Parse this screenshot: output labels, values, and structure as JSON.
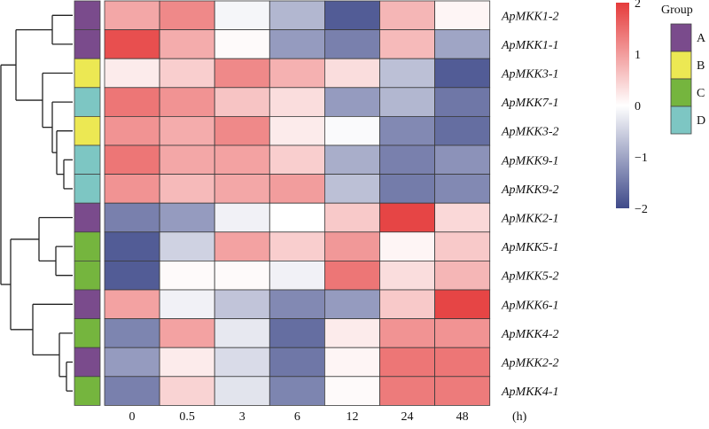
{
  "chart_data": {
    "type": "heatmap",
    "title": "",
    "xlabel": "(h)",
    "ylabel": "",
    "columns": [
      "0",
      "0.5",
      "3",
      "6",
      "12",
      "24",
      "48"
    ],
    "unit_label": "(h)",
    "rows": [
      {
        "gene": "ApMKK1-2",
        "group": "A",
        "values": [
          0.9,
          1.2,
          -0.1,
          -0.8,
          -1.8,
          0.75,
          0.1
        ]
      },
      {
        "gene": "ApMKK1-1",
        "group": "A",
        "values": [
          1.8,
          0.85,
          0.05,
          -1.1,
          -1.4,
          0.7,
          -1.0
        ]
      },
      {
        "gene": "ApMKK3-1",
        "group": "B",
        "values": [
          0.2,
          0.5,
          1.2,
          0.8,
          0.35,
          -0.7,
          -1.8
        ]
      },
      {
        "gene": "ApMKK7-1",
        "group": "D",
        "values": [
          1.4,
          1.1,
          0.6,
          0.35,
          -1.1,
          -0.8,
          -1.5
        ]
      },
      {
        "gene": "ApMKK3-2",
        "group": "B",
        "values": [
          1.1,
          0.85,
          1.2,
          0.2,
          -0.05,
          -1.3,
          -1.6
        ]
      },
      {
        "gene": "ApMKK9-1",
        "group": "D",
        "values": [
          1.4,
          0.9,
          0.95,
          0.5,
          -0.9,
          -1.4,
          -1.2
        ]
      },
      {
        "gene": "ApMKK9-2",
        "group": "D",
        "values": [
          1.1,
          0.7,
          0.9,
          1.0,
          -0.7,
          -1.45,
          -1.3
        ]
      },
      {
        "gene": "ApMKK2-1",
        "group": "A",
        "values": [
          -1.4,
          -1.1,
          -0.15,
          0.0,
          0.55,
          1.9,
          0.4
        ]
      },
      {
        "gene": "ApMKK5-1",
        "group": "C",
        "values": [
          -1.8,
          -0.5,
          0.95,
          0.5,
          1.05,
          0.1,
          0.55
        ]
      },
      {
        "gene": "ApMKK5-2",
        "group": "C",
        "values": [
          -1.8,
          0.05,
          0.05,
          -0.15,
          1.4,
          0.35,
          0.75
        ]
      },
      {
        "gene": "ApMKK6-1",
        "group": "A",
        "values": [
          0.95,
          -0.15,
          -0.65,
          -1.3,
          -1.1,
          0.55,
          1.9
        ]
      },
      {
        "gene": "ApMKK4-2",
        "group": "C",
        "values": [
          -1.35,
          0.95,
          -0.25,
          -1.6,
          0.2,
          1.1,
          1.1
        ]
      },
      {
        "gene": "ApMKK2-2",
        "group": "A",
        "values": [
          -1.1,
          0.2,
          -0.4,
          -1.5,
          0.1,
          1.4,
          1.4
        ]
      },
      {
        "gene": "ApMKK4-1",
        "group": "C",
        "values": [
          -1.4,
          0.45,
          -0.3,
          -1.35,
          0.05,
          1.35,
          1.35
        ]
      }
    ],
    "color_scale": {
      "min": -2,
      "max": 2,
      "low_color": "#3f4a8a",
      "mid_color": "#ffffff",
      "high_color": "#e53b3b",
      "ticks": [
        "2",
        "1",
        "0",
        "−1",
        "−2"
      ]
    },
    "group_legend": {
      "title": "Group",
      "items": [
        {
          "label": "A",
          "color": "#7a4b8c"
        },
        {
          "label": "B",
          "color": "#ece853"
        },
        {
          "label": "C",
          "color": "#75b53e"
        },
        {
          "label": "D",
          "color": "#7dc6c3"
        }
      ]
    },
    "dendrogram": "hierarchical clustering tree on rows (left side)"
  }
}
